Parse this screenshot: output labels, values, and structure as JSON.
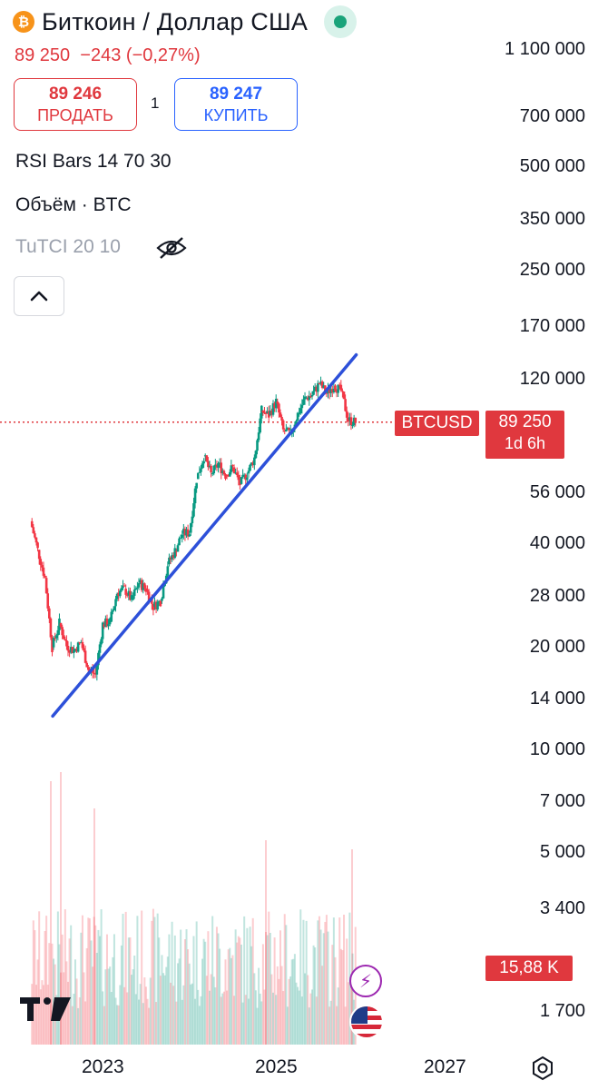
{
  "header": {
    "coin_icon_glyph": "₿",
    "title": "Биткоин / Доллар США",
    "status": "market-open-dot",
    "last_price": "89 250",
    "change": "−243 (−0,27%)"
  },
  "trade": {
    "sell_value": "89 246",
    "sell_label": "ПРОДАТЬ",
    "spread": "1",
    "buy_value": "89 247",
    "buy_label": "КУПИТЬ"
  },
  "indicators": [
    {
      "label": "RSI Bars 14 70 30"
    },
    {
      "label": "Объём · BTC"
    },
    {
      "label": "TuTCI 20 10",
      "hidden": true
    }
  ],
  "y_axis_ticks": [
    "1 100 000",
    "700 000",
    "500 000",
    "350 000",
    "250 000",
    "170 000",
    "120 000",
    "56 000",
    "40 000",
    "28 000",
    "20 000",
    "14 000",
    "10 000",
    "7 000",
    "5 000",
    "3 400",
    "1 700"
  ],
  "x_axis_ticks": [
    "2023",
    "2025",
    "2027"
  ],
  "current_badge": {
    "symbol": "BTCUSD",
    "price": "89 250",
    "countdown": "1d 6h"
  },
  "volume_badge": "15,88 K",
  "branding": {
    "logo": "TV"
  },
  "colors": {
    "up": "#089981",
    "down": "#f23645",
    "trendline": "#2d50d9",
    "accent_red": "#e0383e",
    "accent_blue": "#2962ff"
  },
  "icons": [
    "bitcoin-logo-icon",
    "eye-hidden-icon",
    "chevron-up-icon",
    "lightning-icon",
    "us-flag-icon",
    "settings-icon"
  ],
  "chart_data": {
    "type": "candlestick",
    "scale": "log",
    "symbol": "BTCUSD",
    "x": [
      "2022-03",
      "2022-04",
      "2022-05",
      "2022-06",
      "2022-07",
      "2022-08",
      "2022-09",
      "2022-10",
      "2022-11",
      "2022-12",
      "2023-01",
      "2023-02",
      "2023-03",
      "2023-04",
      "2023-05",
      "2023-06",
      "2023-07",
      "2023-08",
      "2023-09",
      "2023-10",
      "2023-11",
      "2023-12",
      "2024-01",
      "2024-02",
      "2024-03",
      "2024-04",
      "2024-05",
      "2024-06",
      "2024-07",
      "2024-08",
      "2024-09",
      "2024-10",
      "2024-11",
      "2024-12",
      "2025-01",
      "2025-02",
      "2025-03",
      "2025-04",
      "2025-05",
      "2025-06",
      "2025-07",
      "2025-08",
      "2025-09",
      "2025-10",
      "2025-11",
      "2025-12"
    ],
    "close": [
      46000,
      38000,
      31500,
      19800,
      23300,
      20000,
      19400,
      20500,
      17100,
      16500,
      23100,
      23500,
      28500,
      29300,
      27200,
      30500,
      29200,
      26000,
      27000,
      34500,
      37700,
      42300,
      42600,
      61000,
      71000,
      63000,
      67500,
      62700,
      66000,
      59000,
      63300,
      70200,
      96400,
      93500,
      102400,
      84300,
      82500,
      94200,
      104600,
      107100,
      115700,
      108200,
      114000,
      110000,
      90500,
      89250
    ],
    "trendline": {
      "start": {
        "x": "2022-11",
        "y": 12500
      },
      "end": {
        "x": "2025-12",
        "y": 140000
      }
    },
    "last_price": 89250,
    "volume_last": "15,88 K"
  }
}
